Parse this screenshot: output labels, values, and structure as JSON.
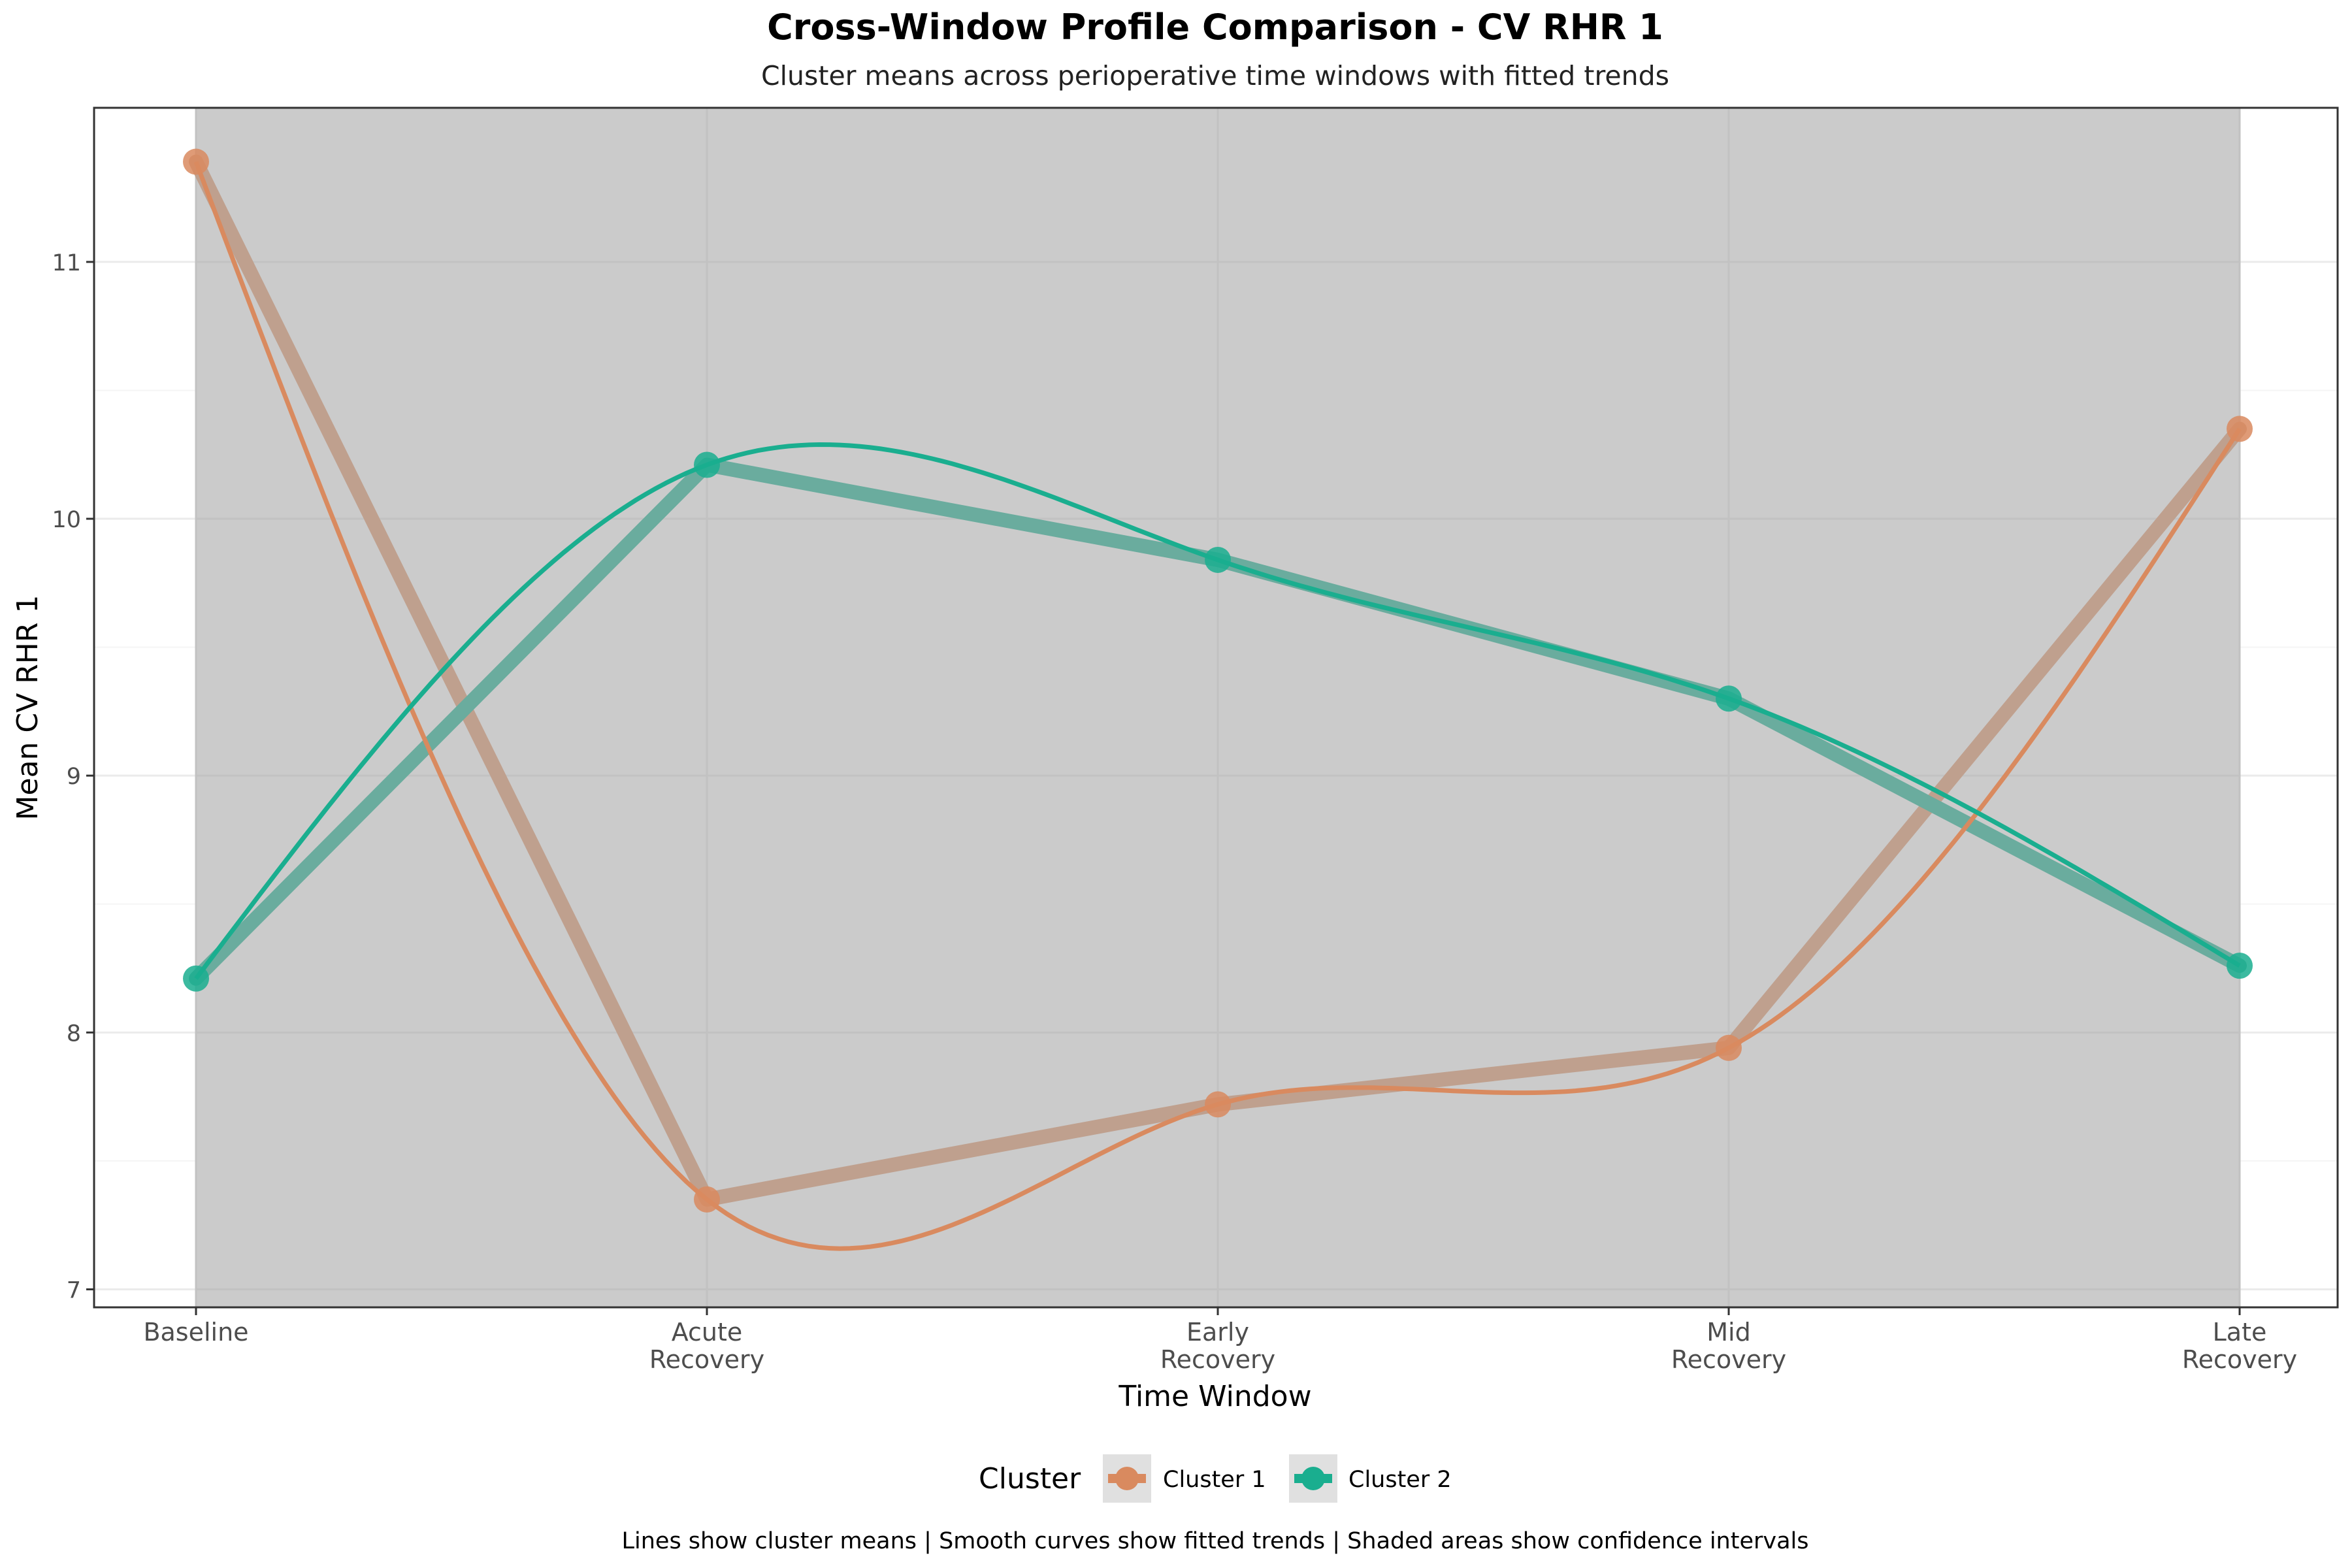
{
  "chart_data": {
    "type": "line",
    "title": "Cross-Window Profile Comparison - CV RHR 1",
    "subtitle": "Cluster means across perioperative time windows with fitted trends",
    "xlabel": "Time Window",
    "ylabel": "Mean CV RHR 1",
    "categories": [
      [
        "Baseline"
      ],
      [
        "Acute",
        "Recovery"
      ],
      [
        "Early",
        "Recovery"
      ],
      [
        "Mid",
        "Recovery"
      ],
      [
        "Late",
        "Recovery"
      ]
    ],
    "ylim": [
      6.93,
      11.6
    ],
    "yticks": [
      7,
      8,
      9,
      10,
      11
    ],
    "grid": true,
    "legend_position": "bottom",
    "legend_title": "Cluster",
    "series": [
      {
        "name": "Cluster 1",
        "color": "#D98A5F",
        "mean_color": "#BFA08E",
        "values": [
          11.39,
          7.35,
          7.72,
          7.94,
          10.35
        ]
      },
      {
        "name": "Cluster 2",
        "color": "#1AAE8F",
        "mean_color": "#6AAC9E",
        "values": [
          8.21,
          10.21,
          9.84,
          9.3,
          8.26
        ]
      }
    ],
    "caption": "Lines show cluster means | Smooth curves show fitted trends | Shaded areas show confidence intervals"
  }
}
